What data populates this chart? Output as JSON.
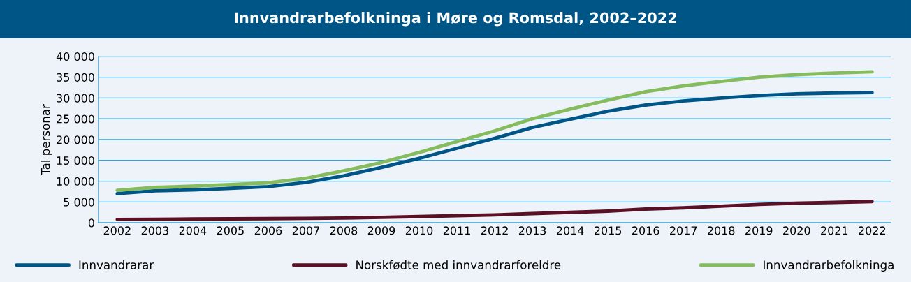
{
  "chart_data": {
    "type": "line",
    "title": "Innvandrarbefolkninga i Møre og Romsdal, 2002–2022",
    "ylabel": "Tal personar",
    "categories": [
      "2002",
      "2003",
      "2004",
      "2005",
      "2006",
      "2007",
      "2008",
      "2009",
      "2010",
      "2011",
      "2012",
      "2013",
      "2014",
      "2015",
      "2016",
      "2017",
      "2018",
      "2019",
      "2020",
      "2021",
      "2022"
    ],
    "series": [
      {
        "name": "Innvandrarar",
        "color": "#005587",
        "values": [
          7000,
          7700,
          7900,
          8300,
          8700,
          9700,
          11300,
          13300,
          15500,
          17900,
          20300,
          22900,
          24900,
          26800,
          28300,
          29300,
          30000,
          30600,
          31000,
          31200,
          31300
        ]
      },
      {
        "name": "Norskfødte med innvandrarforeldre",
        "color": "#5a1025",
        "values": [
          800,
          850,
          900,
          950,
          1000,
          1050,
          1150,
          1300,
          1500,
          1700,
          1900,
          2200,
          2500,
          2800,
          3300,
          3600,
          4000,
          4400,
          4700,
          4900,
          5100
        ]
      },
      {
        "name": "Innvandrarbefolkninga",
        "color": "#86bc5e",
        "values": [
          7800,
          8500,
          8800,
          9200,
          9600,
          10700,
          12500,
          14500,
          16900,
          19500,
          22100,
          25000,
          27300,
          29500,
          31500,
          32900,
          34000,
          35000,
          35600,
          36000,
          36300
        ]
      }
    ],
    "ylim": [
      0,
      40000
    ],
    "yticks": [
      {
        "value": 0,
        "label": "0"
      },
      {
        "value": 5000,
        "label": "5 000"
      },
      {
        "value": 10000,
        "label": "10 000"
      },
      {
        "value": 15000,
        "label": "15 000"
      },
      {
        "value": 20000,
        "label": "20 000"
      },
      {
        "value": 25000,
        "label": "25 000"
      },
      {
        "value": 30000,
        "label": "30 000"
      },
      {
        "value": 35000,
        "label": "35 000"
      },
      {
        "value": 40000,
        "label": "40 000"
      }
    ],
    "grid": "y",
    "legend": "bottom",
    "marker": "none",
    "line_style": "solid"
  }
}
